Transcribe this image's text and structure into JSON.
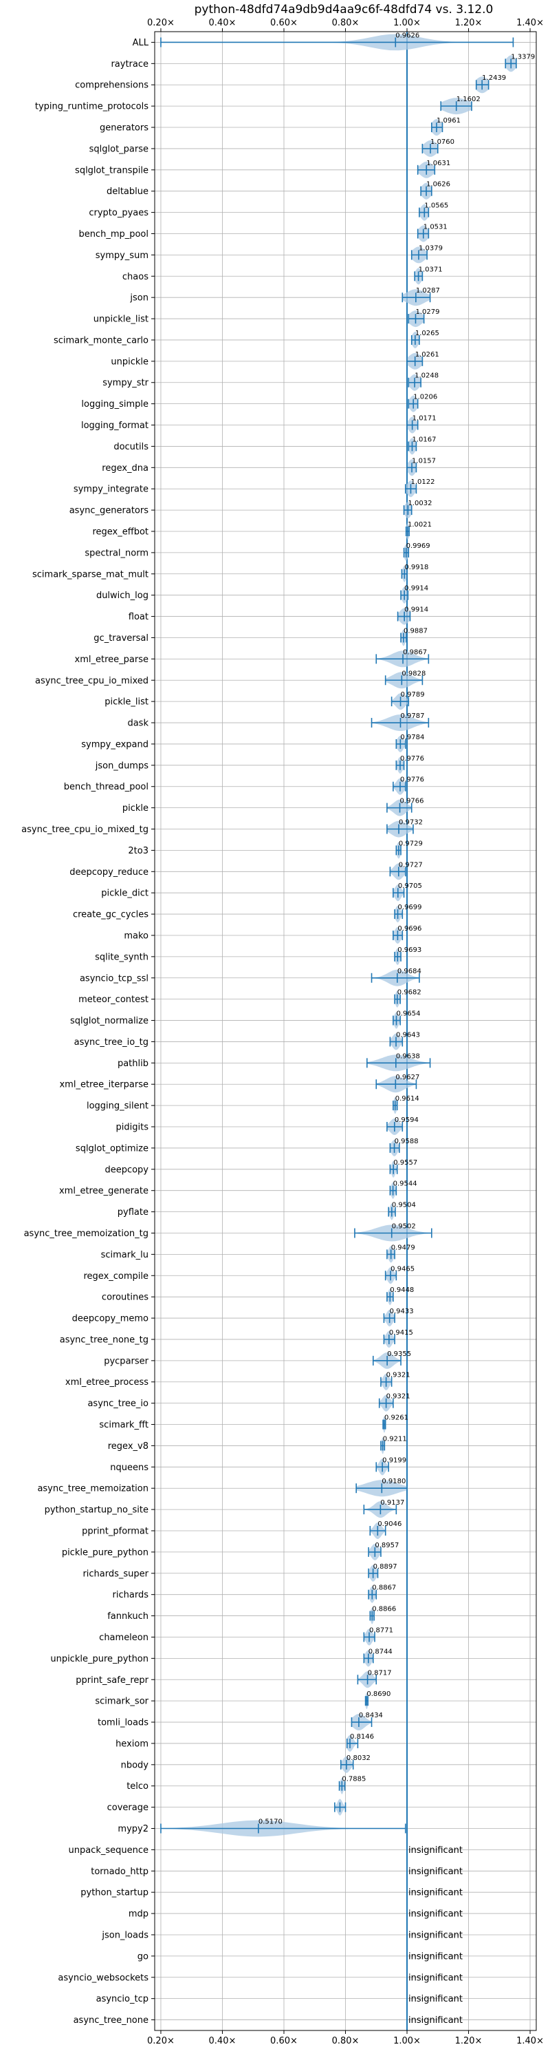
{
  "chart_data": {
    "type": "violin",
    "title": "python-48dfd74a9db9d4aa9c6f-48dfd74 vs. 3.12.0",
    "xlim": [
      0.18,
      1.42
    ],
    "xticks": [
      0.2,
      0.4,
      0.6,
      0.8,
      1.0,
      1.2,
      1.4
    ],
    "xtick_labels": [
      "0.20×",
      "0.40×",
      "0.60×",
      "0.80×",
      "1.00×",
      "1.20×",
      "1.40×"
    ],
    "reference_line": 1.0,
    "grid": true,
    "colors": {
      "accent": "#1f77b4",
      "violin": "#a9c8e3",
      "grid": "#b0b0b0"
    },
    "benchmarks": [
      {
        "name": "ALL",
        "label": "0.9626",
        "value": 0.9626,
        "min": 0.2,
        "max": 1.345,
        "spread": 0.08
      },
      {
        "name": "raytrace",
        "label": "1.3379",
        "value": 1.3379,
        "min": 1.32,
        "max": 1.355,
        "spread": 0.015
      },
      {
        "name": "comprehensions",
        "label": "1.2439",
        "value": 1.2439,
        "min": 1.225,
        "max": 1.265,
        "spread": 0.02
      },
      {
        "name": "typing_runtime_protocols",
        "label": "1.1602",
        "value": 1.1602,
        "min": 1.11,
        "max": 1.21,
        "spread": 0.04
      },
      {
        "name": "generators",
        "label": "1.0961",
        "value": 1.0961,
        "min": 1.08,
        "max": 1.115,
        "spread": 0.015
      },
      {
        "name": "sqlglot_parse",
        "label": "1.0760",
        "value": 1.076,
        "min": 1.05,
        "max": 1.1,
        "spread": 0.02
      },
      {
        "name": "sqlglot_transpile",
        "label": "1.0631",
        "value": 1.0631,
        "min": 1.035,
        "max": 1.09,
        "spread": 0.02
      },
      {
        "name": "deltablue",
        "label": "1.0626",
        "value": 1.0626,
        "min": 1.045,
        "max": 1.08,
        "spread": 0.015
      },
      {
        "name": "crypto_pyaes",
        "label": "1.0565",
        "value": 1.0565,
        "min": 1.04,
        "max": 1.07,
        "spread": 0.012
      },
      {
        "name": "bench_mp_pool",
        "label": "1.0531",
        "value": 1.0531,
        "min": 1.035,
        "max": 1.07,
        "spread": 0.015
      },
      {
        "name": "sympy_sum",
        "label": "1.0379",
        "value": 1.0379,
        "min": 1.015,
        "max": 1.065,
        "spread": 0.02
      },
      {
        "name": "chaos",
        "label": "1.0371",
        "value": 1.0371,
        "min": 1.025,
        "max": 1.05,
        "spread": 0.01
      },
      {
        "name": "json",
        "label": "1.0287",
        "value": 1.0287,
        "min": 0.985,
        "max": 1.075,
        "spread": 0.03
      },
      {
        "name": "unpickle_list",
        "label": "1.0279",
        "value": 1.0279,
        "min": 1.005,
        "max": 1.055,
        "spread": 0.02
      },
      {
        "name": "scimark_monte_carlo",
        "label": "1.0265",
        "value": 1.0265,
        "min": 1.015,
        "max": 1.04,
        "spread": 0.01
      },
      {
        "name": "unpickle",
        "label": "1.0261",
        "value": 1.0261,
        "min": 1.0,
        "max": 1.05,
        "spread": 0.02
      },
      {
        "name": "sympy_str",
        "label": "1.0248",
        "value": 1.0248,
        "min": 1.005,
        "max": 1.045,
        "spread": 0.015
      },
      {
        "name": "logging_simple",
        "label": "1.0206",
        "value": 1.0206,
        "min": 1.005,
        "max": 1.035,
        "spread": 0.012
      },
      {
        "name": "logging_format",
        "label": "1.0171",
        "value": 1.0171,
        "min": 1.0,
        "max": 1.035,
        "spread": 0.012
      },
      {
        "name": "docutils",
        "label": "1.0167",
        "value": 1.0167,
        "min": 1.005,
        "max": 1.03,
        "spread": 0.01
      },
      {
        "name": "regex_dna",
        "label": "1.0157",
        "value": 1.0157,
        "min": 1.0,
        "max": 1.03,
        "spread": 0.012
      },
      {
        "name": "sympy_integrate",
        "label": "1.0122",
        "value": 1.0122,
        "min": 0.995,
        "max": 1.03,
        "spread": 0.012
      },
      {
        "name": "async_generators",
        "label": "1.0032",
        "value": 1.0032,
        "min": 0.99,
        "max": 1.015,
        "spread": 0.01
      },
      {
        "name": "regex_effbot",
        "label": "1.0021",
        "value": 1.0021,
        "min": 0.997,
        "max": 1.007,
        "spread": 0.005
      },
      {
        "name": "spectral_norm",
        "label": "0.9969",
        "value": 0.9969,
        "min": 0.99,
        "max": 1.005,
        "spread": 0.006
      },
      {
        "name": "scimark_sparse_mat_mult",
        "label": "0.9918",
        "value": 0.9918,
        "min": 0.983,
        "max": 1.0,
        "spread": 0.006
      },
      {
        "name": "dulwich_log",
        "label": "0.9914",
        "value": 0.9914,
        "min": 0.98,
        "max": 1.003,
        "spread": 0.008
      },
      {
        "name": "float",
        "label": "0.9914",
        "value": 0.9914,
        "min": 0.97,
        "max": 1.01,
        "spread": 0.015
      },
      {
        "name": "gc_traversal",
        "label": "0.9887",
        "value": 0.9887,
        "min": 0.98,
        "max": 0.998,
        "spread": 0.006
      },
      {
        "name": "xml_etree_parse",
        "label": "0.9867",
        "value": 0.9867,
        "min": 0.9,
        "max": 1.07,
        "spread": 0.035
      },
      {
        "name": "async_tree_cpu_io_mixed",
        "label": "0.9828",
        "value": 0.9828,
        "min": 0.93,
        "max": 1.05,
        "spread": 0.03
      },
      {
        "name": "pickle_list",
        "label": "0.9789",
        "value": 0.9789,
        "min": 0.95,
        "max": 1.005,
        "spread": 0.015
      },
      {
        "name": "dask",
        "label": "0.9787",
        "value": 0.9787,
        "min": 0.885,
        "max": 1.07,
        "spread": 0.04
      },
      {
        "name": "sympy_expand",
        "label": "0.9784",
        "value": 0.9784,
        "min": 0.965,
        "max": 0.995,
        "spread": 0.01
      },
      {
        "name": "json_dumps",
        "label": "0.9776",
        "value": 0.9776,
        "min": 0.965,
        "max": 0.99,
        "spread": 0.008
      },
      {
        "name": "bench_thread_pool",
        "label": "0.9776",
        "value": 0.9776,
        "min": 0.955,
        "max": 0.995,
        "spread": 0.012
      },
      {
        "name": "pickle",
        "label": "0.9766",
        "value": 0.9766,
        "min": 0.935,
        "max": 1.015,
        "spread": 0.02
      },
      {
        "name": "async_tree_cpu_io_mixed_tg",
        "label": "0.9732",
        "value": 0.9732,
        "min": 0.935,
        "max": 1.02,
        "spread": 0.025
      },
      {
        "name": "2to3",
        "label": "0.9729",
        "value": 0.9729,
        "min": 0.965,
        "max": 0.98,
        "spread": 0.006
      },
      {
        "name": "deepcopy_reduce",
        "label": "0.9727",
        "value": 0.9727,
        "min": 0.945,
        "max": 0.995,
        "spread": 0.015
      },
      {
        "name": "pickle_dict",
        "label": "0.9705",
        "value": 0.9705,
        "min": 0.955,
        "max": 0.99,
        "spread": 0.01
      },
      {
        "name": "create_gc_cycles",
        "label": "0.9699",
        "value": 0.9699,
        "min": 0.96,
        "max": 0.985,
        "spread": 0.008
      },
      {
        "name": "mako",
        "label": "0.9696",
        "value": 0.9696,
        "min": 0.955,
        "max": 0.985,
        "spread": 0.01
      },
      {
        "name": "sqlite_synth",
        "label": "0.9693",
        "value": 0.9693,
        "min": 0.96,
        "max": 0.98,
        "spread": 0.007
      },
      {
        "name": "asyncio_tcp_ssl",
        "label": "0.9684",
        "value": 0.9684,
        "min": 0.885,
        "max": 1.04,
        "spread": 0.03
      },
      {
        "name": "meteor_contest",
        "label": "0.9682",
        "value": 0.9682,
        "min": 0.96,
        "max": 0.978,
        "spread": 0.006
      },
      {
        "name": "sqlglot_normalize",
        "label": "0.9654",
        "value": 0.9654,
        "min": 0.955,
        "max": 0.978,
        "spread": 0.007
      },
      {
        "name": "async_tree_io_tg",
        "label": "0.9643",
        "value": 0.9643,
        "min": 0.945,
        "max": 0.985,
        "spread": 0.012
      },
      {
        "name": "pathlib",
        "label": "0.9638",
        "value": 0.9638,
        "min": 0.87,
        "max": 1.075,
        "spread": 0.045
      },
      {
        "name": "xml_etree_iterparse",
        "label": "0.9627",
        "value": 0.9627,
        "min": 0.9,
        "max": 1.03,
        "spread": 0.03
      },
      {
        "name": "logging_silent",
        "label": "0.9614",
        "value": 0.9614,
        "min": 0.955,
        "max": 0.968,
        "spread": 0.005
      },
      {
        "name": "pidigits",
        "label": "0.9594",
        "value": 0.9594,
        "min": 0.935,
        "max": 0.985,
        "spread": 0.015
      },
      {
        "name": "sqlglot_optimize",
        "label": "0.9588",
        "value": 0.9588,
        "min": 0.945,
        "max": 0.975,
        "spread": 0.01
      },
      {
        "name": "deepcopy",
        "label": "0.9557",
        "value": 0.9557,
        "min": 0.945,
        "max": 0.968,
        "spread": 0.006
      },
      {
        "name": "xml_etree_generate",
        "label": "0.9544",
        "value": 0.9544,
        "min": 0.945,
        "max": 0.965,
        "spread": 0.006
      },
      {
        "name": "pyflate",
        "label": "0.9504",
        "value": 0.9504,
        "min": 0.94,
        "max": 0.962,
        "spread": 0.006
      },
      {
        "name": "async_tree_memoization_tg",
        "label": "0.9502",
        "value": 0.9502,
        "min": 0.83,
        "max": 1.08,
        "spread": 0.05
      },
      {
        "name": "scimark_lu",
        "label": "0.9479",
        "value": 0.9479,
        "min": 0.935,
        "max": 0.96,
        "spread": 0.008
      },
      {
        "name": "regex_compile",
        "label": "0.9465",
        "value": 0.9465,
        "min": 0.93,
        "max": 0.965,
        "spread": 0.01
      },
      {
        "name": "coroutines",
        "label": "0.9448",
        "value": 0.9448,
        "min": 0.935,
        "max": 0.955,
        "spread": 0.006
      },
      {
        "name": "deepcopy_memo",
        "label": "0.9433",
        "value": 0.9433,
        "min": 0.925,
        "max": 0.96,
        "spread": 0.01
      },
      {
        "name": "async_tree_none_tg",
        "label": "0.9415",
        "value": 0.9415,
        "min": 0.925,
        "max": 0.96,
        "spread": 0.01
      },
      {
        "name": "pycparser",
        "label": "0.9355",
        "value": 0.9355,
        "min": 0.89,
        "max": 0.98,
        "spread": 0.02
      },
      {
        "name": "xml_etree_process",
        "label": "0.9321",
        "value": 0.9321,
        "min": 0.915,
        "max": 0.95,
        "spread": 0.01
      },
      {
        "name": "async_tree_io",
        "label": "0.9321",
        "value": 0.9321,
        "min": 0.91,
        "max": 0.955,
        "spread": 0.012
      },
      {
        "name": "scimark_fft",
        "label": "0.9261",
        "value": 0.9261,
        "min": 0.922,
        "max": 0.93,
        "spread": 0.004
      },
      {
        "name": "regex_v8",
        "label": "0.9211",
        "value": 0.9211,
        "min": 0.915,
        "max": 0.927,
        "spread": 0.004
      },
      {
        "name": "nqueens",
        "label": "0.9199",
        "value": 0.9199,
        "min": 0.9,
        "max": 0.94,
        "spread": 0.01
      },
      {
        "name": "async_tree_memoization",
        "label": "0.9180",
        "value": 0.918,
        "min": 0.835,
        "max": 1.0,
        "spread": 0.05
      },
      {
        "name": "python_startup_no_site",
        "label": "0.9137",
        "value": 0.9137,
        "min": 0.86,
        "max": 0.965,
        "spread": 0.02
      },
      {
        "name": "pprint_pformat",
        "label": "0.9046",
        "value": 0.9046,
        "min": 0.88,
        "max": 0.93,
        "spread": 0.012
      },
      {
        "name": "pickle_pure_python",
        "label": "0.8957",
        "value": 0.8957,
        "min": 0.875,
        "max": 0.915,
        "spread": 0.012
      },
      {
        "name": "richards_super",
        "label": "0.8897",
        "value": 0.8897,
        "min": 0.875,
        "max": 0.905,
        "spread": 0.01
      },
      {
        "name": "richards",
        "label": "0.8867",
        "value": 0.8867,
        "min": 0.875,
        "max": 0.9,
        "spread": 0.008
      },
      {
        "name": "fannkuch",
        "label": "0.8866",
        "value": 0.8866,
        "min": 0.88,
        "max": 0.893,
        "spread": 0.005
      },
      {
        "name": "chameleon",
        "label": "0.8771",
        "value": 0.8771,
        "min": 0.86,
        "max": 0.895,
        "spread": 0.01
      },
      {
        "name": "unpickle_pure_python",
        "label": "0.8744",
        "value": 0.8744,
        "min": 0.86,
        "max": 0.89,
        "spread": 0.01
      },
      {
        "name": "pprint_safe_repr",
        "label": "0.8717",
        "value": 0.8717,
        "min": 0.84,
        "max": 0.9,
        "spread": 0.015
      },
      {
        "name": "scimark_sor",
        "label": "0.8690",
        "value": 0.869,
        "min": 0.865,
        "max": 0.873,
        "spread": 0.004
      },
      {
        "name": "tomli_loads",
        "label": "0.8434",
        "value": 0.8434,
        "min": 0.82,
        "max": 0.885,
        "spread": 0.02
      },
      {
        "name": "hexiom",
        "label": "0.8146",
        "value": 0.8146,
        "min": 0.805,
        "max": 0.84,
        "spread": 0.01
      },
      {
        "name": "nbody",
        "label": "0.8032",
        "value": 0.8032,
        "min": 0.785,
        "max": 0.825,
        "spread": 0.012
      },
      {
        "name": "telco",
        "label": "0.7885",
        "value": 0.7885,
        "min": 0.78,
        "max": 0.798,
        "spread": 0.005
      },
      {
        "name": "coverage",
        "label": "",
        "value": 0.782,
        "min": 0.765,
        "max": 0.8,
        "spread": 0.008
      },
      {
        "name": "mypy2",
        "label": "0.5170",
        "value": 0.517,
        "min": 0.2,
        "max": 0.995,
        "spread": 0.12
      },
      {
        "name": "unpack_sequence",
        "insignificant": true
      },
      {
        "name": "tornado_http",
        "insignificant": true
      },
      {
        "name": "python_startup",
        "insignificant": true
      },
      {
        "name": "mdp",
        "insignificant": true
      },
      {
        "name": "json_loads",
        "insignificant": true
      },
      {
        "name": "go",
        "insignificant": true
      },
      {
        "name": "asyncio_websockets",
        "insignificant": true
      },
      {
        "name": "asyncio_tcp",
        "insignificant": true
      },
      {
        "name": "async_tree_none",
        "insignificant": true
      }
    ],
    "insignificant_label": "insignificant"
  }
}
